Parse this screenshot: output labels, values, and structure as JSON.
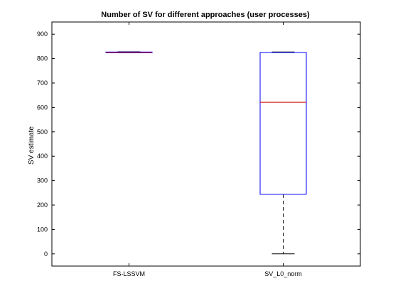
{
  "chart_data": {
    "type": "box",
    "title": "Number of SV for different approaches (user processes)",
    "xlabel": "",
    "ylabel": "SV estimate",
    "ylim": [
      -50,
      950
    ],
    "yticks": [
      0,
      100,
      200,
      300,
      400,
      500,
      600,
      700,
      800,
      900
    ],
    "grid": false,
    "categories": [
      "FS-LSSVM",
      "SV_L0_norm"
    ],
    "boxes": [
      {
        "category": "FS-LSSVM",
        "whisker_low": 824,
        "q1": 824,
        "median": 826,
        "q3": 827,
        "whisker_high": 828
      },
      {
        "category": "SV_L0_norm",
        "whisker_low": 0,
        "q1": 244,
        "median": 621,
        "q3": 825,
        "whisker_high": 827
      }
    ],
    "colors": {
      "box": "#0000ff",
      "median": "#cc0000",
      "whisker": "#000000",
      "axis": "#000000"
    }
  }
}
